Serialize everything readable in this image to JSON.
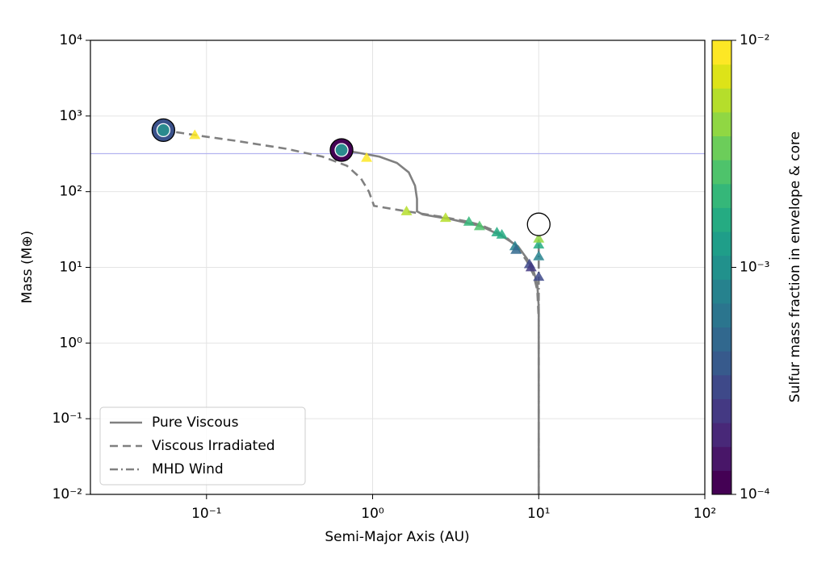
{
  "chart_data": {
    "type": "line",
    "xlabel": "Semi-Major Axis (AU)",
    "ylabel": "Mass (M⊕)",
    "xscale": "log",
    "yscale": "log",
    "xlim": [
      0.02,
      100
    ],
    "ylim": [
      0.01,
      10000
    ],
    "xticks": [
      {
        "value": 0.1,
        "label": "10⁻¹"
      },
      {
        "value": 1,
        "label": "10⁰"
      },
      {
        "value": 10,
        "label": "10¹"
      },
      {
        "value": 100,
        "label": "10²"
      }
    ],
    "yticks": [
      {
        "value": 0.01,
        "label": "10⁻²"
      },
      {
        "value": 0.1,
        "label": "10⁻¹"
      },
      {
        "value": 1,
        "label": "10⁰"
      },
      {
        "value": 10,
        "label": "10¹"
      },
      {
        "value": 100,
        "label": "10²"
      },
      {
        "value": 1000,
        "label": "10³"
      },
      {
        "value": 10000,
        "label": "10⁴"
      }
    ],
    "grid": true,
    "legend": "lower left",
    "hlines": [
      {
        "value": 318,
        "color": "#b4b4f0"
      }
    ],
    "series": [
      {
        "name": "Pure Viscous",
        "color": "#808080",
        "dash": "solid",
        "x": [
          10,
          10,
          9.8,
          9.3,
          8.5,
          7.5,
          6,
          4.5,
          3,
          2,
          1.85,
          1.85,
          1.8,
          1.65,
          1.4,
          1.1,
          0.8,
          0.65
        ],
        "values": [
          0.01,
          3,
          6,
          9,
          13,
          19,
          26,
          35,
          43,
          50,
          55,
          80,
          120,
          180,
          240,
          290,
          330,
          355
        ]
      },
      {
        "name": "Viscous Irradiated",
        "color": "#808080",
        "dash": "dashed",
        "x": [
          0.055,
          0.085,
          0.15,
          0.3,
          0.5,
          0.7,
          0.85,
          0.95,
          1.02,
          1.6,
          2.7,
          3.8,
          4.5,
          5.5,
          6.5,
          7.5,
          8.5,
          9.3,
          9.8,
          10,
          10
        ],
        "values": [
          650,
          560,
          470,
          370,
          290,
          220,
          150,
          100,
          65,
          55,
          46,
          40,
          36,
          30,
          24,
          18,
          12,
          8,
          5,
          2,
          0.01
        ]
      },
      {
        "name": "MHD Wind",
        "color": "#808080",
        "dash": "dashdot",
        "x": [
          10,
          10,
          10,
          10,
          10
        ],
        "values": [
          0.01,
          7,
          14,
          20,
          25
        ]
      }
    ],
    "points": {
      "x": [
        0.085,
        0.92,
        1.6,
        2.75,
        3.8,
        4.4,
        5.6,
        6.0,
        7.2,
        7.3,
        8.8,
        9.0,
        10,
        10,
        10,
        10
      ],
      "y": [
        560,
        280,
        55,
        45,
        40,
        35,
        29,
        27,
        19,
        17,
        11,
        10,
        7.5,
        14,
        20,
        24
      ],
      "c": [
        0.009,
        0.008,
        0.005,
        0.005,
        0.002,
        0.0025,
        0.0015,
        0.0018,
        0.0007,
        0.0005,
        0.0003,
        0.00025,
        0.0003,
        0.0007,
        0.0015,
        0.004
      ]
    },
    "planets": [
      {
        "x": 0.055,
        "y": 650,
        "color": "#3b528b",
        "core_color": "#2b8a8e"
      },
      {
        "x": 0.65,
        "y": 355,
        "color": "#440154",
        "core_color": "#2b8a8e"
      },
      {
        "x": 10,
        "y": 37,
        "color": "#ffffff"
      }
    ],
    "colorbar": {
      "label": "Sulfur mass fraction in envelope & core",
      "scale": "log",
      "clim": [
        0.0001,
        0.01
      ],
      "cticks": [
        {
          "value": 0.0001,
          "label": "10⁻⁴"
        },
        {
          "value": 0.001,
          "label": "10⁻³"
        },
        {
          "value": 0.01,
          "label": "10⁻²"
        }
      ],
      "colormap": [
        "#440154",
        "#481668",
        "#482878",
        "#443983",
        "#3e4989",
        "#375a8c",
        "#31688e",
        "#2b758e",
        "#26828e",
        "#21918c",
        "#1f9e89",
        "#25ab82",
        "#35b779",
        "#4ec36b",
        "#6ccd5a",
        "#90d743",
        "#b5de2b",
        "#dde318",
        "#fde725"
      ]
    }
  }
}
